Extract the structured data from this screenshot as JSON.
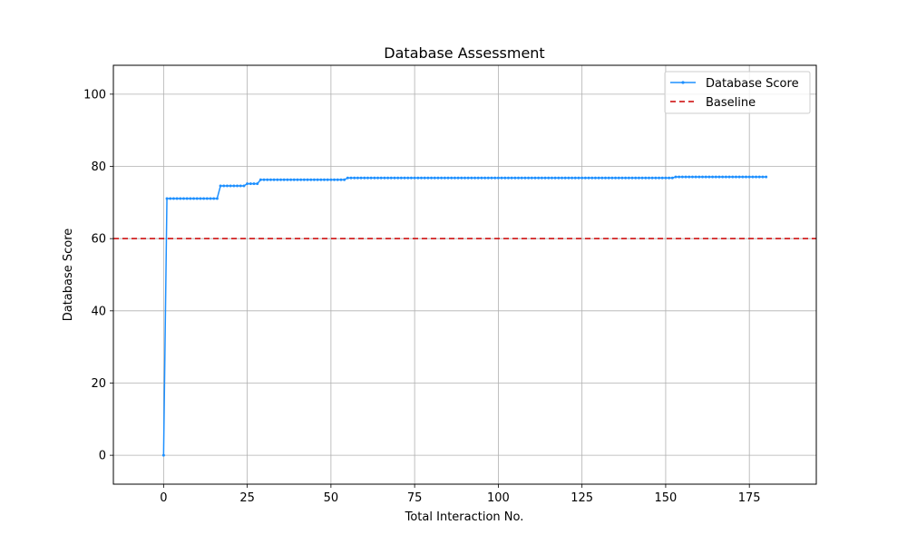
{
  "chart_data": {
    "type": "line",
    "title": "Database Assessment",
    "xlabel": "Total Interaction No.",
    "ylabel": "Database Score",
    "xlim": [
      -15,
      195
    ],
    "ylim": [
      -8,
      108
    ],
    "xticks": [
      0,
      25,
      50,
      75,
      100,
      125,
      150,
      175
    ],
    "yticks": [
      0,
      20,
      40,
      60,
      80,
      100
    ],
    "grid": true,
    "legend_position": "top-right",
    "series": [
      {
        "name": "Database Score",
        "color": "#1e90ff",
        "marker": "dot",
        "segments": [
          {
            "x_start": 0,
            "x_end": 0,
            "y": 0
          },
          {
            "x_start": 1,
            "x_end": 16,
            "y": 71.1
          },
          {
            "x_start": 17,
            "x_end": 24,
            "y": 74.6
          },
          {
            "x_start": 25,
            "x_end": 28,
            "y": 75.2
          },
          {
            "x_start": 29,
            "x_end": 54,
            "y": 76.3
          },
          {
            "x_start": 55,
            "x_end": 152,
            "y": 76.8
          },
          {
            "x_start": 153,
            "x_end": 180,
            "y": 77.1
          }
        ]
      },
      {
        "name": "Baseline",
        "color": "#cc0000",
        "style": "dashed",
        "y": 60
      }
    ]
  }
}
